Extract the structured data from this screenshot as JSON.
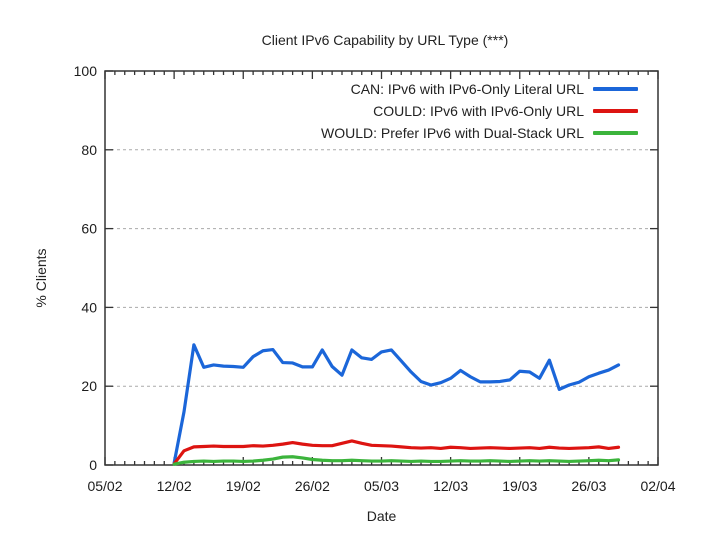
{
  "window": {
    "background": "#ffffff"
  },
  "chart_data": {
    "type": "line",
    "title": "Client IPv6 Capability by URL Type (***)",
    "xlabel": "Date",
    "ylabel": "% Clients",
    "ylim": [
      0,
      100
    ],
    "y_ticks": [
      0,
      20,
      40,
      60,
      80,
      100
    ],
    "x_tick_labels": [
      "05/02",
      "12/02",
      "19/02",
      "26/02",
      "05/03",
      "12/03",
      "19/03",
      "26/03",
      "02/04"
    ],
    "x_range_days": 56,
    "grid": "horizontal-dotted",
    "legend_position": "top-right-inside",
    "x_dates": [
      "12/02",
      "13/02",
      "14/02",
      "15/02",
      "16/02",
      "17/02",
      "18/02",
      "19/02",
      "20/02",
      "21/02",
      "22/02",
      "23/02",
      "24/02",
      "25/02",
      "26/02",
      "27/02",
      "28/02",
      "01/03",
      "02/03",
      "03/03",
      "04/03",
      "05/03",
      "06/03",
      "07/03",
      "08/03",
      "09/03",
      "10/03",
      "11/03",
      "12/03",
      "13/03",
      "14/03",
      "15/03",
      "16/03",
      "17/03",
      "18/03",
      "19/03",
      "20/03",
      "21/03",
      "22/03",
      "23/03",
      "24/03",
      "25/03",
      "26/03",
      "27/03",
      "28/03",
      "29/03"
    ],
    "series": [
      {
        "name": "CAN: IPv6 with IPv6-Only Literal URL",
        "color": "#1b66d9",
        "values": [
          0.5,
          13.5,
          30.5,
          24.8,
          25.4,
          25.1,
          25.0,
          24.8,
          27.5,
          29.0,
          29.3,
          26.0,
          25.9,
          24.9,
          24.9,
          29.2,
          25.0,
          22.8,
          29.2,
          27.2,
          26.8,
          28.7,
          29.2,
          26.4,
          23.6,
          21.2,
          20.3,
          20.9,
          22.0,
          24.0,
          22.4,
          21.1,
          21.1,
          21.2,
          21.6,
          23.8,
          23.6,
          22.0,
          26.6,
          19.2,
          20.3,
          21.0,
          22.4,
          23.3,
          24.1,
          25.4
        ]
      },
      {
        "name": "COULD: IPv6 with IPv6-Only URL",
        "color": "#dd1411",
        "values": [
          0.3,
          3.6,
          4.6,
          4.7,
          4.8,
          4.7,
          4.7,
          4.7,
          4.9,
          4.8,
          5.0,
          5.3,
          5.7,
          5.3,
          5.0,
          4.9,
          4.9,
          5.5,
          6.1,
          5.5,
          5.0,
          4.9,
          4.8,
          4.6,
          4.4,
          4.3,
          4.4,
          4.2,
          4.5,
          4.4,
          4.2,
          4.3,
          4.4,
          4.3,
          4.2,
          4.3,
          4.4,
          4.2,
          4.5,
          4.3,
          4.2,
          4.3,
          4.4,
          4.6,
          4.2,
          4.5
        ]
      },
      {
        "name": "WOULD: Prefer IPv6 with Dual-Stack URL",
        "color": "#3cb43c",
        "values": [
          0.2,
          0.7,
          0.9,
          1.0,
          0.9,
          1.0,
          1.0,
          0.9,
          1.0,
          1.2,
          1.5,
          2.0,
          2.1,
          1.8,
          1.4,
          1.2,
          1.1,
          1.1,
          1.2,
          1.1,
          1.0,
          1.0,
          1.1,
          1.0,
          0.9,
          1.0,
          0.9,
          0.9,
          1.0,
          1.1,
          1.0,
          1.0,
          1.1,
          1.0,
          0.9,
          1.0,
          1.1,
          1.0,
          1.1,
          1.0,
          0.9,
          1.0,
          1.1,
          1.2,
          1.1,
          1.3
        ]
      }
    ],
    "colors": {
      "grid": "#aaaaaa",
      "axis": "#333333",
      "text": "#1c1c1c"
    }
  }
}
